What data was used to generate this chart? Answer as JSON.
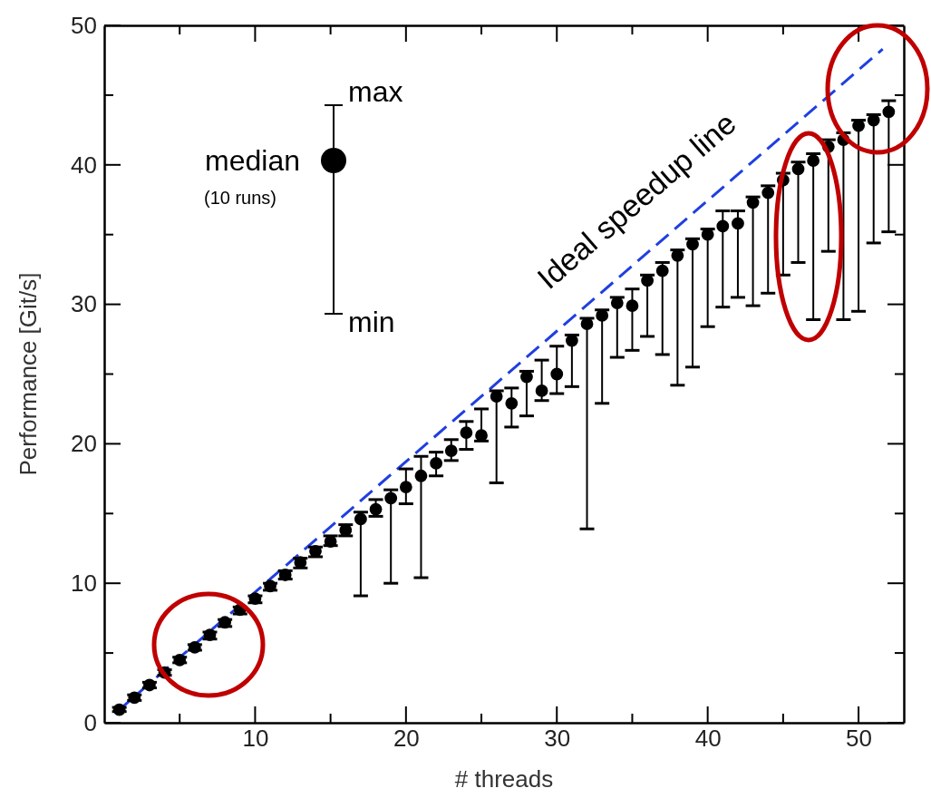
{
  "chart_data": {
    "type": "scatter",
    "xlabel": "# threads",
    "ylabel": "Performance [Git/s]",
    "xlim": [
      0,
      53
    ],
    "xticks": [
      {
        "value": 5,
        "label": null
      },
      10,
      {
        "value": 15,
        "label": null
      },
      20,
      {
        "value": 25,
        "label": null
      },
      30,
      {
        "value": 35,
        "label": null
      },
      40,
      {
        "value": 45,
        "label": null
      },
      50
    ],
    "ylim": [
      0,
      50
    ],
    "yticks": [
      0,
      {
        "value": 5,
        "label": null
      },
      10,
      {
        "value": 15,
        "label": null
      },
      20,
      {
        "value": 25,
        "label": null
      },
      30,
      {
        "value": 35,
        "label": null
      },
      40,
      {
        "value": 45,
        "label": null
      },
      50
    ],
    "grid": false,
    "annotations": [
      "max",
      "median",
      "(10 runs)",
      "min"
    ],
    "series": [
      {
        "marker": "circle",
        "color": "#000000",
        "x": [
          1,
          2,
          3,
          4,
          5,
          6,
          7,
          8,
          9,
          10,
          11,
          12,
          13,
          14,
          15,
          16,
          17,
          18,
          19,
          20,
          21,
          22,
          23,
          24,
          25,
          26,
          27,
          28,
          29,
          30,
          31,
          32,
          33,
          34,
          35,
          36,
          37,
          38,
          39,
          40,
          41,
          42,
          43,
          44,
          45,
          46,
          47,
          48,
          49,
          50,
          51,
          52
        ],
        "values": [
          0.93,
          1.8,
          2.7,
          3.6,
          4.5,
          5.4,
          6.3,
          7.2,
          8.1,
          8.9,
          9.8,
          10.6,
          11.5,
          12.3,
          13.0,
          13.8,
          14.6,
          15.3,
          16.1,
          16.9,
          17.7,
          18.6,
          19.5,
          20.8,
          20.6,
          23.4,
          22.9,
          24.8,
          23.8,
          25.0,
          27.4,
          28.6,
          29.2,
          30.1,
          29.9,
          31.7,
          32.4,
          33.5,
          34.3,
          35.0,
          35.6,
          35.8,
          37.3,
          38.0,
          38.9,
          39.7,
          40.3,
          41.3,
          41.8,
          42.8,
          43.2,
          43.8
        ],
        "errors": [
          [
            0.8,
            1.1
          ],
          [
            1.6,
            2.0
          ],
          [
            2.5,
            2.9
          ],
          [
            3.4,
            3.8
          ],
          [
            4.3,
            4.7
          ],
          [
            5.2,
            5.6
          ],
          [
            6.0,
            6.5
          ],
          [
            6.9,
            7.4
          ],
          [
            7.8,
            8.3
          ],
          [
            8.6,
            9.1
          ],
          [
            9.5,
            10.0
          ],
          [
            10.3,
            10.9
          ],
          [
            11.1,
            11.8
          ],
          [
            11.9,
            12.6
          ],
          [
            12.7,
            13.4
          ],
          [
            13.4,
            14.2
          ],
          [
            9.1,
            15.1
          ],
          [
            14.8,
            16.0
          ],
          [
            10.0,
            16.7
          ],
          [
            15.7,
            18.2
          ],
          [
            10.4,
            19.1
          ],
          [
            17.7,
            19.4
          ],
          [
            18.8,
            20.3
          ],
          [
            19.6,
            21.6
          ],
          [
            20.2,
            22.5
          ],
          [
            17.2,
            23.8
          ],
          [
            21.2,
            24.0
          ],
          [
            22.0,
            25.2
          ],
          [
            23.1,
            26.0
          ],
          [
            23.6,
            27.0
          ],
          [
            24.1,
            27.8
          ],
          [
            13.9,
            29.0
          ],
          [
            22.9,
            29.6
          ],
          [
            26.2,
            30.5
          ],
          [
            26.7,
            31.1
          ],
          [
            27.7,
            32.1
          ],
          [
            26.4,
            33.0
          ],
          [
            24.2,
            33.9
          ],
          [
            25.5,
            34.7
          ],
          [
            28.4,
            35.4
          ],
          [
            29.8,
            36.7
          ],
          [
            30.5,
            36.7
          ],
          [
            29.9,
            37.7
          ],
          [
            30.8,
            38.5
          ],
          [
            32.1,
            39.4
          ],
          [
            33.0,
            40.2
          ],
          [
            28.9,
            40.8
          ],
          [
            33.8,
            41.8
          ],
          [
            28.9,
            42.3
          ],
          [
            29.5,
            43.2
          ],
          [
            34.4,
            43.6
          ],
          [
            35.2,
            44.6
          ]
        ]
      },
      {
        "type": "line",
        "name": "Ideal speedup line",
        "color": "#1f3fe0",
        "line_style": "dashed",
        "marker": "none",
        "x": [
          1,
          51.6
        ],
        "values": [
          0.94,
          48.3
        ]
      }
    ]
  }
}
